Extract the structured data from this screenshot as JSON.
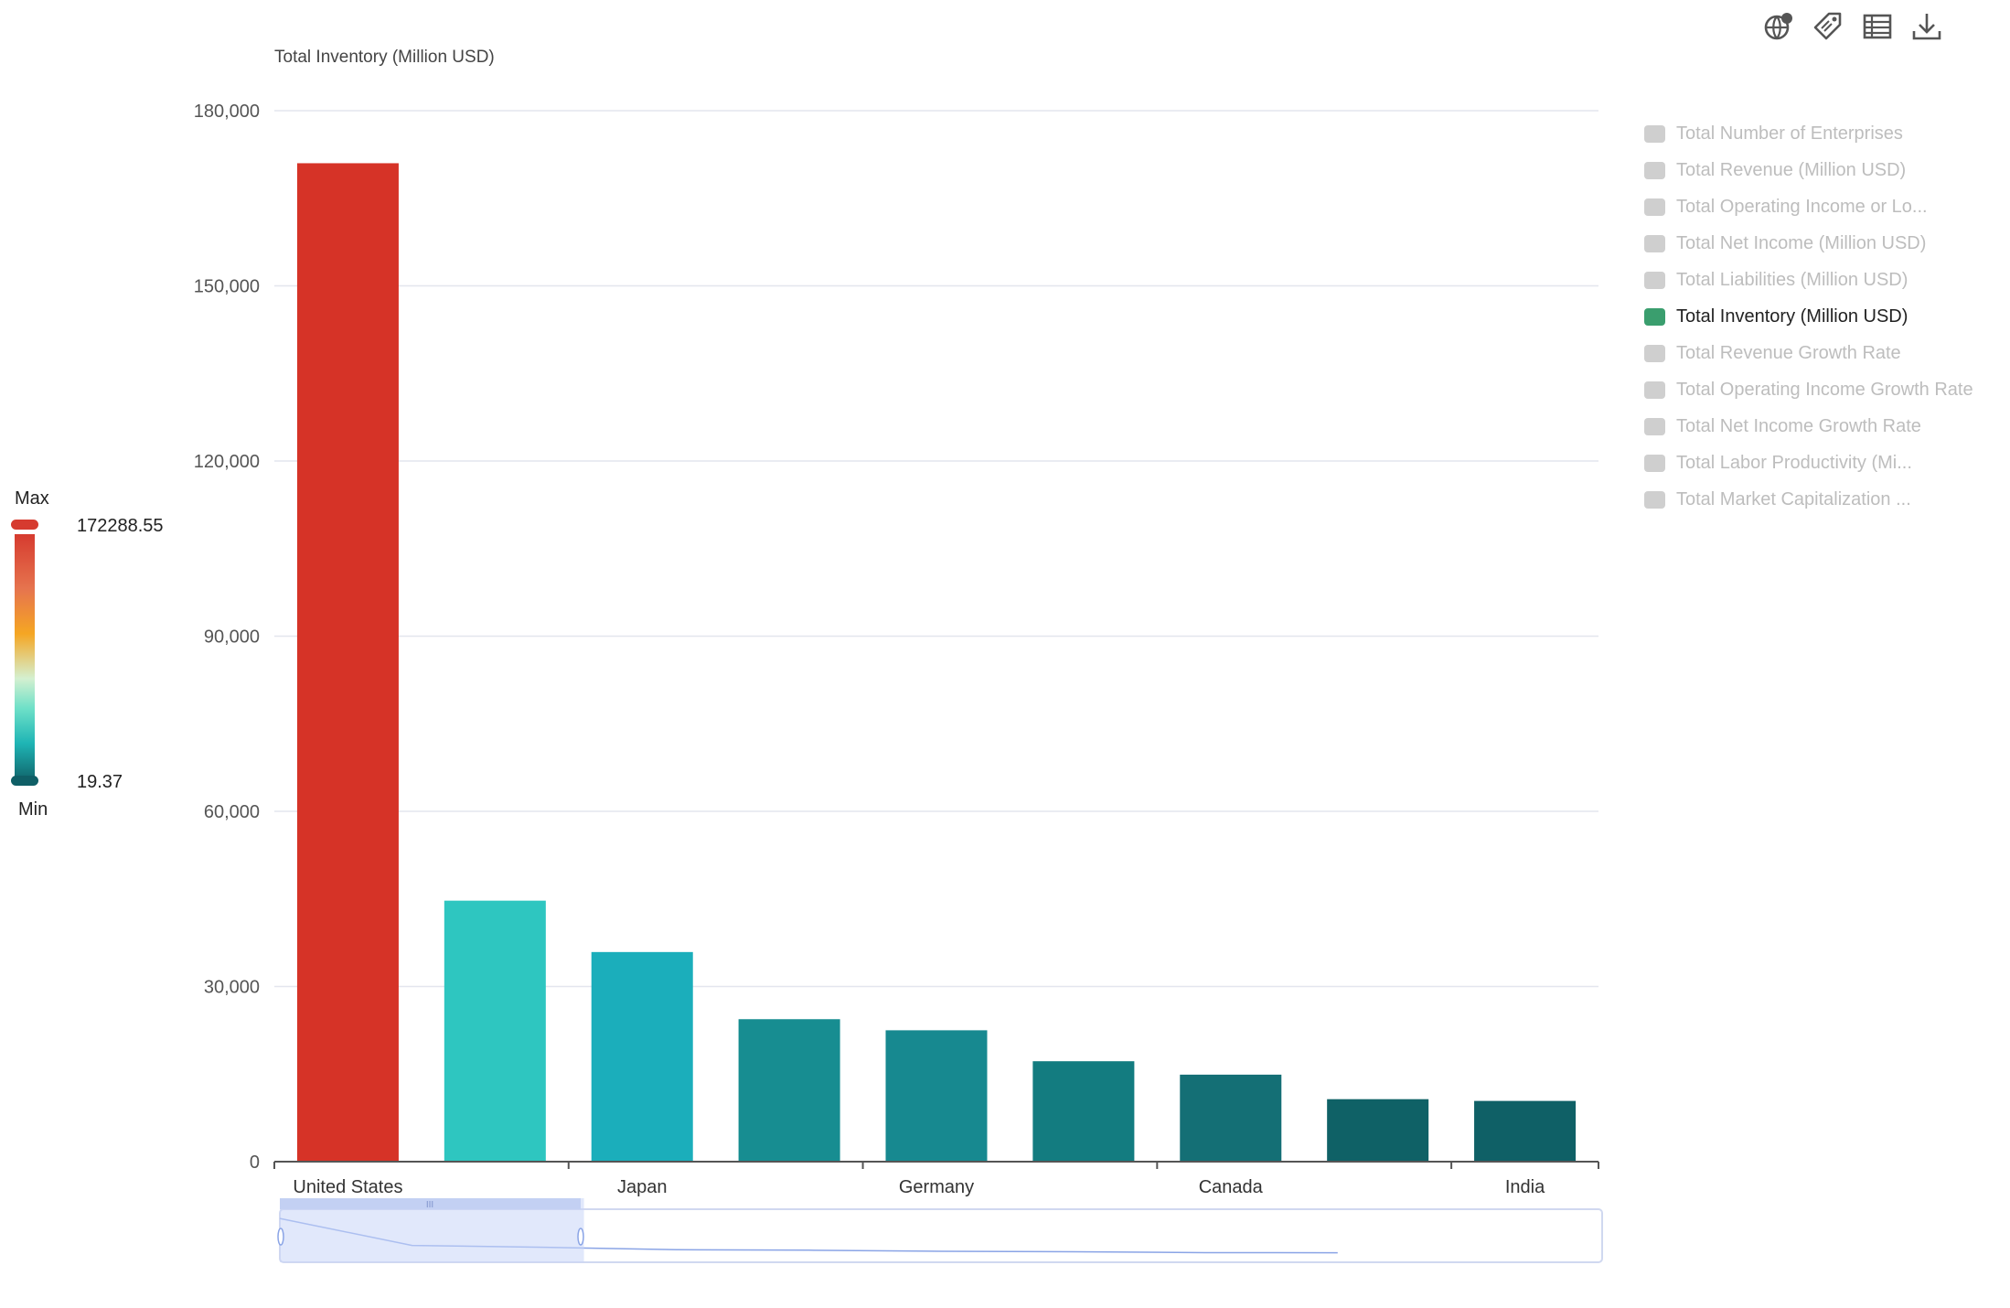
{
  "toolbar": {
    "icons": [
      "globe-icon",
      "tag-icon",
      "table-icon",
      "download-icon"
    ]
  },
  "legend": {
    "items": [
      {
        "label": "Total Number of Enterprises",
        "active": false
      },
      {
        "label": "Total Revenue (Million USD)",
        "active": false
      },
      {
        "label": "Total Operating Income or Lo...",
        "active": false
      },
      {
        "label": "Total Net Income (Million USD)",
        "active": false
      },
      {
        "label": "Total Liabilities (Million USD)",
        "active": false
      },
      {
        "label": "Total Inventory (Million USD)",
        "active": true
      },
      {
        "label": "Total Revenue Growth Rate",
        "active": false
      },
      {
        "label": "Total Operating Income Growth Rate",
        "active": false
      },
      {
        "label": "Total Net Income Growth Rate",
        "active": false
      },
      {
        "label": "Total Labor Productivity (Mi...",
        "active": false
      },
      {
        "label": "Total Market Capitalization ...",
        "active": false
      }
    ]
  },
  "visual_map": {
    "max_label": "Max",
    "min_label": "Min",
    "max_value": "172288.55",
    "min_value": "19.37",
    "colors": {
      "max": "#d63b2f",
      "min": "#0f5f66"
    }
  },
  "chart_data": {
    "type": "bar",
    "ylabel": "Total Inventory (Million USD)",
    "ylim": [
      0,
      180000
    ],
    "yticks": [
      0,
      30000,
      60000,
      90000,
      120000,
      150000,
      180000
    ],
    "ytick_labels": [
      "0",
      "30,000",
      "60,000",
      "90,000",
      "120,000",
      "150,000",
      "180,000"
    ],
    "categories": [
      "United States",
      "",
      "Japan",
      "",
      "Germany",
      "",
      "Canada",
      "",
      "India"
    ],
    "values": [
      171000,
      44700,
      35900,
      24400,
      22500,
      17200,
      14900,
      10700,
      10400
    ],
    "colors": [
      "#d63327",
      "#2ec6c0",
      "#1baebb",
      "#178d91",
      "#178990",
      "#137c80",
      "#146f75",
      "#0f6166",
      "#0f6066"
    ],
    "grid": true,
    "legend_position": "right",
    "datazoom": {
      "start": 0,
      "end": 0.23
    }
  }
}
